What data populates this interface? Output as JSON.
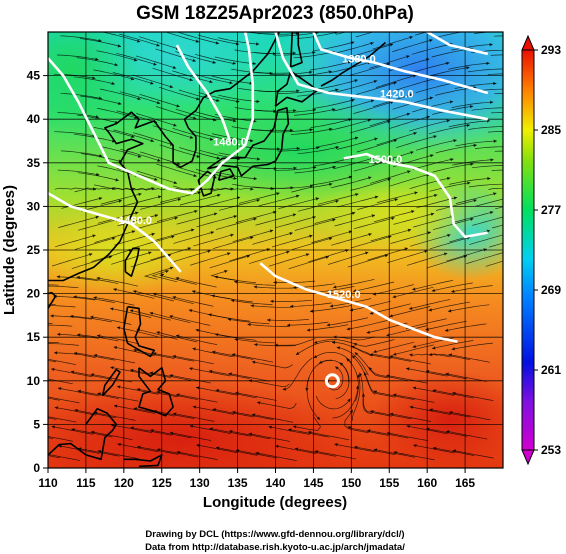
{
  "chart_data": {
    "type": "heatmap",
    "title": "GSM 18Z25Apr2023 (850.0hPa)",
    "xlabel": "Longitude (degrees)",
    "ylabel": "Latitude  (degrees)",
    "xlim": [
      110,
      170
    ],
    "ylim": [
      0,
      50
    ],
    "x_ticks": [
      "110",
      "115",
      "120",
      "125",
      "130",
      "135",
      "140",
      "145",
      "150",
      "155",
      "160",
      "165"
    ],
    "y_ticks": [
      "0",
      "5",
      "10",
      "15",
      "20",
      "25",
      "30",
      "35",
      "40",
      "45"
    ],
    "grid": true,
    "colorbar": {
      "range": [
        253,
        293
      ],
      "ticks": [
        "253",
        "261",
        "269",
        "277",
        "285",
        "293"
      ],
      "colors": [
        "#cc00cc",
        "#0000e0",
        "#0090ff",
        "#00d8e0",
        "#00e060",
        "#f0f000",
        "#ff8000",
        "#e01000"
      ]
    },
    "contours": [
      {
        "label": "1380.0",
        "lon": 151,
        "lat": 46.5
      },
      {
        "label": "1420.0",
        "lon": 156,
        "lat": 42.5
      },
      {
        "label": "1460.0",
        "lon": 134,
        "lat": 37
      },
      {
        "label": "1480.0",
        "lon": 121.5,
        "lat": 28
      },
      {
        "label": "1500.0",
        "lon": 154.5,
        "lat": 35
      },
      {
        "label": "1520.0",
        "lon": 149,
        "lat": 19.5
      }
    ],
    "marker": {
      "lon": 147.5,
      "lat": 10
    }
  },
  "credits": {
    "line1": "Drawing by DCL (https://www.gfd-dennou.org/library/dcl/)",
    "line2": "Data from http://database.rish.kyoto-u.ac.jp/arch/jmadata/"
  }
}
